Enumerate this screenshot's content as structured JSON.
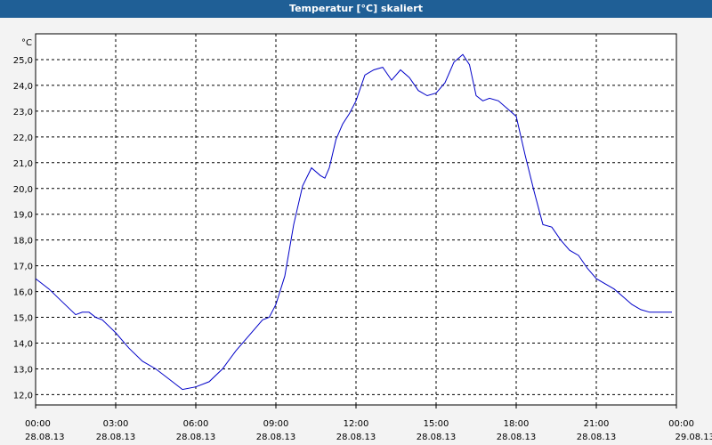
{
  "window": {
    "title": "Temperatur [°C] skaliert"
  },
  "chart_data": {
    "type": "line",
    "title": "Temperatur [°C] skaliert",
    "ylabel": "°C",
    "xlabel": "",
    "ylim": [
      11.6,
      26.0
    ],
    "xlim_hours": [
      0,
      24
    ],
    "grid": true,
    "y_ticks": [
      "12,0",
      "13,0",
      "14,0",
      "15,0",
      "16,0",
      "17,0",
      "18,0",
      "19,0",
      "20,0",
      "21,0",
      "22,0",
      "23,0",
      "24,0",
      "25,0"
    ],
    "x_ticks": [
      {
        "time": "00:00",
        "date": "28.08.13"
      },
      {
        "time": "03:00",
        "date": "28.08.13"
      },
      {
        "time": "06:00",
        "date": "28.08.13"
      },
      {
        "time": "09:00",
        "date": "28.08.13"
      },
      {
        "time": "12:00",
        "date": "28.08.13"
      },
      {
        "time": "15:00",
        "date": "28.08.13"
      },
      {
        "time": "18:00",
        "date": "28.08.13"
      },
      {
        "time": "21:00",
        "date": "28.08.13"
      },
      {
        "time": "00:00",
        "date": "29.08.13"
      }
    ],
    "series": [
      {
        "color": "#0000c8",
        "x": [
          "00:00",
          "00:30",
          "01:00",
          "01:30",
          "01:45",
          "02:00",
          "02:15",
          "02:30",
          "03:00",
          "03:30",
          "04:00",
          "04:30",
          "05:00",
          "05:30",
          "06:00",
          "06:30",
          "07:00",
          "07:30",
          "08:00",
          "08:30",
          "08:45",
          "09:00",
          "09:20",
          "09:40",
          "10:00",
          "10:20",
          "10:40",
          "10:50",
          "11:00",
          "11:15",
          "11:30",
          "11:45",
          "12:00",
          "12:20",
          "12:40",
          "13:00",
          "13:20",
          "13:40",
          "14:00",
          "14:20",
          "14:40",
          "15:00",
          "15:20",
          "15:40",
          "16:00",
          "16:15",
          "16:30",
          "16:45",
          "17:00",
          "17:20",
          "17:40",
          "18:00",
          "18:20",
          "18:40",
          "19:00",
          "19:20",
          "19:40",
          "20:00",
          "20:20",
          "20:40",
          "21:00",
          "21:20",
          "21:40",
          "22:00",
          "22:20",
          "22:40",
          "23:00",
          "23:30",
          "23:50"
        ],
        "y": [
          16.5,
          16.1,
          15.6,
          15.1,
          15.2,
          15.2,
          15.0,
          14.9,
          14.4,
          13.8,
          13.3,
          13.0,
          12.6,
          12.2,
          12.3,
          12.5,
          13.0,
          13.7,
          14.3,
          14.9,
          15.0,
          15.5,
          16.6,
          18.6,
          20.1,
          20.8,
          20.5,
          20.4,
          20.8,
          21.9,
          22.5,
          22.9,
          23.4,
          24.4,
          24.6,
          24.7,
          24.2,
          24.6,
          24.3,
          23.8,
          23.6,
          23.7,
          24.1,
          24.9,
          25.2,
          24.8,
          23.6,
          23.4,
          23.5,
          23.4,
          23.1,
          22.8,
          21.3,
          19.9,
          18.6,
          18.5,
          18.0,
          17.6,
          17.4,
          16.9,
          16.5,
          16.3,
          16.1,
          15.8,
          15.5,
          15.3,
          15.2,
          15.2,
          15.2
        ]
      }
    ]
  }
}
